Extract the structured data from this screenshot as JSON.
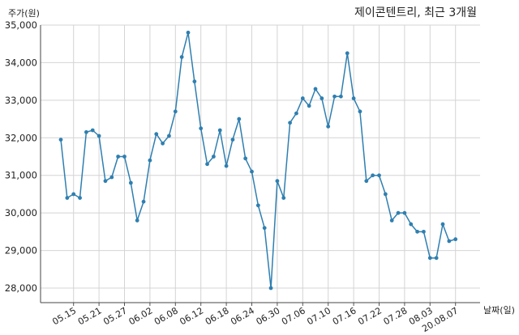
{
  "chart_data": {
    "type": "line",
    "title": "제이콘텐트리, 최근 3개월",
    "ylabel": "주가(원)",
    "xlabel": "날짜(일)",
    "ylim": [
      28000,
      35000
    ],
    "yticks": [
      28000,
      29000,
      30000,
      31000,
      32000,
      33000,
      34000,
      35000
    ],
    "ytick_labels": [
      "28,000",
      "29,000",
      "30,000",
      "31,000",
      "32,000",
      "33,000",
      "34,000",
      "35,000"
    ],
    "xticks": [
      {
        "index": 2,
        "label": "05.15"
      },
      {
        "index": 6,
        "label": "05.21"
      },
      {
        "index": 10,
        "label": "05.27"
      },
      {
        "index": 14,
        "label": "06.02"
      },
      {
        "index": 18,
        "label": "06.08"
      },
      {
        "index": 22,
        "label": "06.12"
      },
      {
        "index": 26,
        "label": "06.18"
      },
      {
        "index": 30,
        "label": "06.24"
      },
      {
        "index": 34,
        "label": "06.30"
      },
      {
        "index": 38,
        "label": "07.06"
      },
      {
        "index": 42,
        "label": "07.10"
      },
      {
        "index": 46,
        "label": "07.16"
      },
      {
        "index": 50,
        "label": "07.22"
      },
      {
        "index": 54,
        "label": "07.28"
      },
      {
        "index": 58,
        "label": "08.03"
      },
      {
        "index": 62,
        "label": "20.08.07"
      }
    ],
    "grid": true,
    "line_color": "#2f7fb0",
    "series": [
      {
        "values": [
          31950,
          30400,
          30500,
          30400,
          32150,
          32200,
          32050,
          30850,
          30950,
          31500,
          31500,
          30800,
          29800,
          30300,
          31400,
          32100,
          31850,
          32050,
          32700,
          34150,
          34800,
          33500,
          32250,
          31300,
          31500,
          32200,
          31250,
          31950,
          32500,
          31450,
          31100,
          30200,
          29600,
          28000,
          30850,
          30400,
          32400,
          32650,
          33050,
          32850,
          33300,
          33050,
          32300,
          33100,
          33100,
          34250,
          33050,
          32700,
          30850,
          31000,
          31000,
          30500,
          29800,
          30000,
          30000,
          29700,
          29500,
          29500,
          28800,
          28800,
          29700,
          29250,
          29300
        ]
      }
    ]
  }
}
